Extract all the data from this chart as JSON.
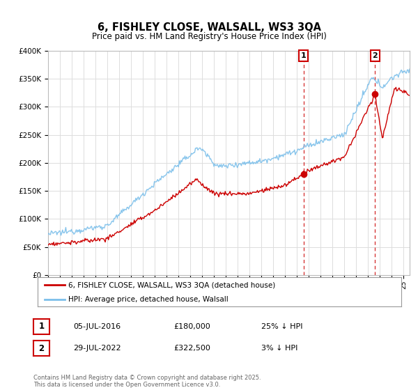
{
  "title": "6, FISHLEY CLOSE, WALSALL, WS3 3QA",
  "subtitle": "Price paid vs. HM Land Registry's House Price Index (HPI)",
  "ylim": [
    0,
    400000
  ],
  "yticks": [
    0,
    50000,
    100000,
    150000,
    200000,
    250000,
    300000,
    350000,
    400000
  ],
  "xlim_start": 1995.0,
  "xlim_end": 2025.5,
  "hpi_color": "#7bbfea",
  "price_color": "#cc0000",
  "marker1_date": 2016.54,
  "marker1_price": 180000,
  "marker2_date": 2022.58,
  "marker2_price": 322500,
  "legend_label1": "6, FISHLEY CLOSE, WALSALL, WS3 3QA (detached house)",
  "legend_label2": "HPI: Average price, detached house, Walsall",
  "annotation1_date": "05-JUL-2016",
  "annotation1_price": "£180,000",
  "annotation1_hpi": "25% ↓ HPI",
  "annotation2_date": "29-JUL-2022",
  "annotation2_price": "£322,500",
  "annotation2_hpi": "3% ↓ HPI",
  "copyright_text": "Contains HM Land Registry data © Crown copyright and database right 2025.\nThis data is licensed under the Open Government Licence v3.0.",
  "background_color": "#ffffff",
  "grid_color": "#dddddd"
}
